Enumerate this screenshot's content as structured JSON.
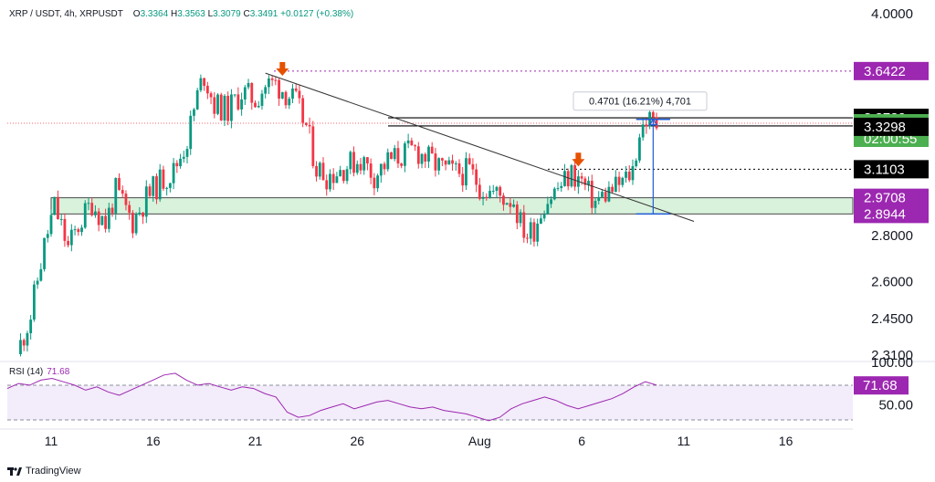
{
  "header": {
    "symbol": "XRP / USDT, 4h, XRPUSDT",
    "o_label": "O",
    "o": "3.3364",
    "h_label": "H",
    "h": "3.3563",
    "l_label": "L",
    "l": "3.3079",
    "c_label": "C",
    "c": "3.3491",
    "change": "+0.0127 (+0.38%)"
  },
  "rsi_panel": {
    "title": "RSI (14)",
    "value": "71.68"
  },
  "footer": {
    "brand": "TradingView"
  },
  "colors": {
    "up": "#089981",
    "down": "#f23645",
    "purple": "#9c27b0",
    "badge_purple": "#9c27b0",
    "badge_black": "#000000",
    "badge_green": "#4caf50",
    "arrow": "#e65100",
    "measure": "#1e5bd8",
    "support_zone": "#d6f0d8"
  },
  "chart_data": [
    {
      "type": "candlestick",
      "title": "XRP / USDT, 4h, XRPUSDT",
      "xlabel": "",
      "ylabel": "",
      "yscale": "log",
      "ylim": [
        2.28,
        4.05
      ],
      "y_ticks": [
        "4.0000",
        "2.8000",
        "2.6000",
        "2.4500",
        "2.3100"
      ],
      "x_ticks": [
        "11",
        "16",
        "21",
        "26",
        "Aug",
        "6",
        "11",
        "16"
      ],
      "grid": false,
      "path": [
        [
          "Jul 9 12:00",
          2.31
        ],
        [
          "Jul 10 04:00",
          2.46
        ],
        [
          "Jul 10 20:00",
          2.75
        ],
        [
          "Jul 11 08:00",
          2.93
        ],
        [
          "Jul 12 00:00",
          2.74
        ],
        [
          "Jul 12 12:00",
          2.84
        ],
        [
          "Jul 13 04:00",
          2.95
        ],
        [
          "Jul 13 20:00",
          2.85
        ],
        [
          "Jul 14 08:00",
          3.0
        ],
        [
          "Jul 15 04:00",
          2.86
        ],
        [
          "Jul 15 20:00",
          2.97
        ],
        [
          "Jul 16 12:00",
          3.05
        ],
        [
          "Jul 17 04:00",
          3.1
        ],
        [
          "Jul 17 20:00",
          3.26
        ],
        [
          "Jul 18 08:00",
          3.5
        ],
        [
          "Jul 18 16:00",
          3.62
        ],
        [
          "Jul 19 04:00",
          3.45
        ],
        [
          "Jul 19 20:00",
          3.42
        ],
        [
          "Jul 20 12:00",
          3.52
        ],
        [
          "Jul 21 04:00",
          3.48
        ],
        [
          "Jul 21 16:00",
          3.56
        ],
        [
          "Jul 22 04:00",
          3.57
        ],
        [
          "Jul 22 16:00",
          3.52
        ],
        [
          "Jul 23 04:00",
          3.46
        ],
        [
          "Jul 23 16:00",
          3.33
        ],
        [
          "Jul 24 04:00",
          3.12
        ],
        [
          "Jul 24 16:00",
          3.08
        ],
        [
          "Jul 25 04:00",
          3.1
        ],
        [
          "Jul 25 16:00",
          3.13
        ],
        [
          "Jul 26 08:00",
          3.16
        ],
        [
          "Jul 27 00:00",
          3.08
        ],
        [
          "Jul 27 16:00",
          3.15
        ],
        [
          "Jul 28 08:00",
          3.18
        ],
        [
          "Jul 29 00:00",
          3.21
        ],
        [
          "Jul 29 16:00",
          3.16
        ],
        [
          "Jul 30 08:00",
          3.11
        ],
        [
          "Jul 31 00:00",
          3.09
        ],
        [
          "Jul 31 16:00",
          3.1
        ],
        [
          "Aug 1 04:00",
          3.03
        ],
        [
          "Aug 1 16:00",
          3.0
        ],
        [
          "Aug 2 04:00",
          2.98
        ],
        [
          "Aug 2 20:00",
          2.96
        ],
        [
          "Aug 3 04:00",
          2.85
        ],
        [
          "Aug 3 12:00",
          2.8
        ],
        [
          "Aug 3 20:00",
          2.83
        ],
        [
          "Aug 4 08:00",
          2.95
        ],
        [
          "Aug 4 20:00",
          3.0
        ],
        [
          "Aug 5 08:00",
          3.05
        ],
        [
          "Aug 5 16:00",
          3.09
        ],
        [
          "Aug 6 04:00",
          3.05
        ],
        [
          "Aug 6 12:00",
          2.99
        ],
        [
          "Aug 6 20:00",
          2.95
        ],
        [
          "Aug 7 08:00",
          2.99
        ],
        [
          "Aug 7 20:00",
          3.02
        ],
        [
          "Aug 8 08:00",
          3.06
        ],
        [
          "Aug 8 16:00",
          3.11
        ],
        [
          "Aug 9 00:00",
          3.3
        ],
        [
          "Aug 9 08:00",
          3.37
        ],
        [
          "Aug 9 16:00",
          3.3491
        ]
      ],
      "price_labels": [
        {
          "value": "3.6422",
          "style": "purple"
        },
        {
          "value": "3.3782",
          "style": "black"
        },
        {
          "value": "3.3491",
          "style": "green",
          "sub": "02:00:55"
        },
        {
          "value": "3.3298",
          "style": "black"
        },
        {
          "value": "3.1103",
          "style": "black"
        },
        {
          "value": "2.9708",
          "style": "purple"
        },
        {
          "value": "2.8944",
          "style": "purple"
        }
      ],
      "annotations": {
        "measure_label": "0.4701 (16.21%) 4,701",
        "horizontal_levels": [
          3.6422,
          3.3782,
          3.3491,
          3.3298,
          3.1103
        ],
        "support_zone": [
          2.8944,
          2.9708
        ],
        "downtrend_line": [
          [
            "Jul 21 12:00",
            3.63
          ],
          [
            "Aug 11 12:00",
            2.86
          ]
        ],
        "arrows": [
          "Jul 22 08:00",
          "Aug 5 20:00"
        ]
      }
    },
    {
      "type": "line",
      "title": "RSI (14)",
      "xlabel": "",
      "ylabel": "",
      "ylim": [
        20,
        100
      ],
      "y_ticks": [
        "100.00",
        "50.00"
      ],
      "bands": [
        30,
        70
      ],
      "series": [
        {
          "name": "RSI (14)",
          "values": [
            68,
            74,
            72,
            78,
            80,
            76,
            72,
            66,
            70,
            64,
            60,
            66,
            72,
            78,
            84,
            86,
            78,
            72,
            74,
            70,
            66,
            70,
            68,
            62,
            58,
            40,
            34,
            36,
            42,
            46,
            50,
            44,
            48,
            52,
            54,
            50,
            46,
            44,
            46,
            42,
            40,
            38,
            34,
            30,
            34,
            44,
            50,
            54,
            58,
            54,
            48,
            44,
            48,
            52,
            56,
            62,
            70,
            76,
            72
          ]
        }
      ]
    }
  ]
}
